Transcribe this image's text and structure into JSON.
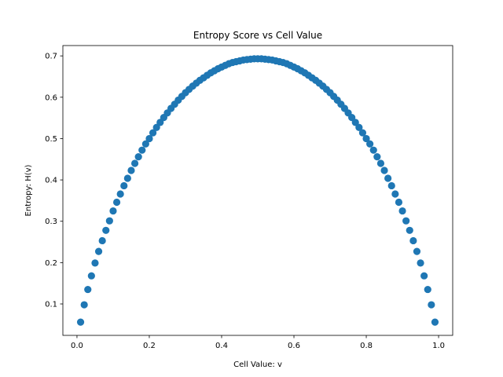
{
  "chart_data": {
    "type": "scatter",
    "title": "Entropy Score vs Cell Value",
    "xlabel": "Cell Value: v",
    "ylabel": "Entropy: H(v)",
    "xlim": [
      -0.039,
      1.039
    ],
    "ylim": [
      0.024,
      0.725
    ],
    "xticks": [
      {
        "value": 0.0,
        "label": "0.0"
      },
      {
        "value": 0.2,
        "label": "0.2"
      },
      {
        "value": 0.4,
        "label": "0.4"
      },
      {
        "value": 0.6,
        "label": "0.6"
      },
      {
        "value": 0.8,
        "label": "0.8"
      },
      {
        "value": 1.0,
        "label": "1.0"
      }
    ],
    "yticks": [
      {
        "value": 0.1,
        "label": "0.1"
      },
      {
        "value": 0.2,
        "label": "0.2"
      },
      {
        "value": 0.3,
        "label": "0.3"
      },
      {
        "value": 0.4,
        "label": "0.4"
      },
      {
        "value": 0.5,
        "label": "0.5"
      },
      {
        "value": 0.6,
        "label": "0.6"
      },
      {
        "value": 0.7,
        "label": "0.7"
      }
    ],
    "grid": false,
    "marker_color": "#1f77b4",
    "series": [
      {
        "x": [
          0.01,
          0.02,
          0.03,
          0.04,
          0.05,
          0.06,
          0.07,
          0.08,
          0.09,
          0.1,
          0.11,
          0.12,
          0.13,
          0.14,
          0.15,
          0.16,
          0.17,
          0.18,
          0.19,
          0.2,
          0.21,
          0.22,
          0.23,
          0.24,
          0.25,
          0.26,
          0.27,
          0.28,
          0.29,
          0.3,
          0.31,
          0.32,
          0.33,
          0.34,
          0.35,
          0.36,
          0.37,
          0.38,
          0.39,
          0.4,
          0.41,
          0.42,
          0.43,
          0.44,
          0.45,
          0.46,
          0.47,
          0.48,
          0.49,
          0.5,
          0.51,
          0.52,
          0.53,
          0.54,
          0.55,
          0.56,
          0.57,
          0.58,
          0.59,
          0.6,
          0.61,
          0.62,
          0.63,
          0.64,
          0.65,
          0.66,
          0.67,
          0.68,
          0.69,
          0.7,
          0.71,
          0.72,
          0.73,
          0.74,
          0.75,
          0.76,
          0.77,
          0.78,
          0.79,
          0.8,
          0.81,
          0.82,
          0.83,
          0.84,
          0.85,
          0.86,
          0.87,
          0.88,
          0.89,
          0.9,
          0.91,
          0.92,
          0.93,
          0.94,
          0.95,
          0.96,
          0.97,
          0.98,
          0.99
        ],
        "y": [
          0.056,
          0.098,
          0.135,
          0.168,
          0.199,
          0.227,
          0.253,
          0.278,
          0.301,
          0.325,
          0.346,
          0.366,
          0.386,
          0.404,
          0.423,
          0.44,
          0.456,
          0.472,
          0.487,
          0.5,
          0.514,
          0.527,
          0.539,
          0.551,
          0.562,
          0.573,
          0.583,
          0.593,
          0.602,
          0.611,
          0.619,
          0.627,
          0.634,
          0.641,
          0.647,
          0.653,
          0.659,
          0.664,
          0.669,
          0.673,
          0.677,
          0.681,
          0.684,
          0.686,
          0.688,
          0.69,
          0.691,
          0.692,
          0.693,
          0.693,
          0.693,
          0.692,
          0.691,
          0.69,
          0.688,
          0.686,
          0.684,
          0.681,
          0.677,
          0.673,
          0.669,
          0.664,
          0.659,
          0.653,
          0.647,
          0.641,
          0.634,
          0.627,
          0.619,
          0.611,
          0.602,
          0.593,
          0.583,
          0.573,
          0.562,
          0.551,
          0.539,
          0.527,
          0.514,
          0.5,
          0.487,
          0.472,
          0.456,
          0.44,
          0.423,
          0.404,
          0.386,
          0.366,
          0.346,
          0.325,
          0.301,
          0.278,
          0.253,
          0.227,
          0.199,
          0.168,
          0.135,
          0.098,
          0.056
        ]
      }
    ]
  }
}
